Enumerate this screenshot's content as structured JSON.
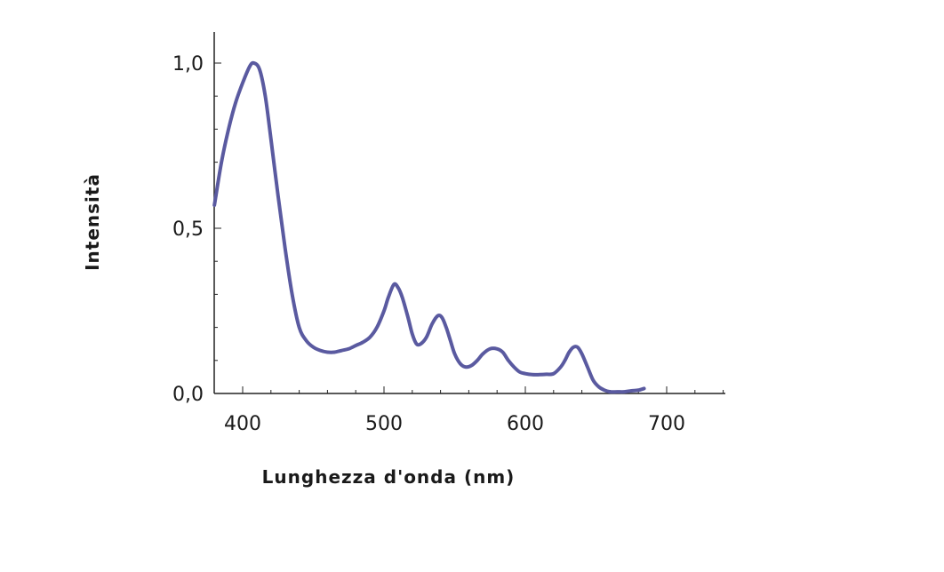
{
  "chart_data": {
    "type": "line",
    "title": "",
    "xlabel": "Lunghezza d'onda (nm)",
    "ylabel": "Intensità",
    "xlim": [
      380,
      740
    ],
    "ylim": [
      0,
      1.1
    ],
    "xticks": [
      400,
      500,
      600,
      700
    ],
    "xtick_labels": [
      "400",
      "500",
      "600",
      "700"
    ],
    "yticks": [
      0,
      0.5,
      1.0
    ],
    "ytick_labels": [
      "0,0",
      "0,5",
      "1,0"
    ],
    "grid": false,
    "legend": "none",
    "series": [
      {
        "color": "#5a5aa0",
        "x": [
          380,
          385,
          390,
          395,
          400,
          405,
          408,
          412,
          416,
          420,
          425,
          430,
          435,
          440,
          445,
          450,
          455,
          460,
          465,
          470,
          475,
          480,
          485,
          490,
          495,
          500,
          503,
          507,
          510,
          513,
          517,
          520,
          523,
          526,
          530,
          534,
          538,
          541,
          544,
          547,
          550,
          554,
          558,
          562,
          566,
          570,
          575,
          580,
          584,
          588,
          592,
          596,
          600,
          605,
          610,
          615,
          620,
          625,
          628,
          631,
          634,
          637,
          640,
          644,
          648,
          652,
          656,
          660,
          665,
          670,
          675,
          680,
          684
        ],
        "y": [
          0.57,
          0.7,
          0.8,
          0.88,
          0.94,
          0.99,
          1.0,
          0.98,
          0.9,
          0.77,
          0.6,
          0.44,
          0.3,
          0.2,
          0.16,
          0.14,
          0.13,
          0.125,
          0.125,
          0.13,
          0.135,
          0.145,
          0.155,
          0.17,
          0.2,
          0.25,
          0.29,
          0.33,
          0.32,
          0.29,
          0.23,
          0.18,
          0.15,
          0.15,
          0.17,
          0.21,
          0.235,
          0.23,
          0.2,
          0.16,
          0.12,
          0.09,
          0.08,
          0.085,
          0.1,
          0.12,
          0.135,
          0.135,
          0.125,
          0.1,
          0.08,
          0.065,
          0.06,
          0.057,
          0.057,
          0.058,
          0.06,
          0.08,
          0.1,
          0.125,
          0.14,
          0.14,
          0.12,
          0.08,
          0.04,
          0.02,
          0.01,
          0.005,
          0.005,
          0.005,
          0.008,
          0.01,
          0.015
        ]
      }
    ]
  }
}
